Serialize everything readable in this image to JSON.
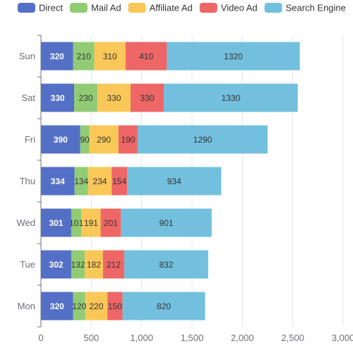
{
  "chart_data": {
    "type": "bar",
    "orientation": "horizontal",
    "stacked": true,
    "categories": [
      "Mon",
      "Tue",
      "Wed",
      "Thu",
      "Fri",
      "Sat",
      "Sun"
    ],
    "series": [
      {
        "name": "Direct",
        "color": "#5470c6",
        "label_color": "#ffffff",
        "values": [
          320,
          302,
          301,
          334,
          390,
          330,
          320
        ]
      },
      {
        "name": "Mail Ad",
        "color": "#91cc75",
        "label_color": "#333333",
        "values": [
          120,
          132,
          101,
          134,
          90,
          230,
          210
        ]
      },
      {
        "name": "Affiliate Ad",
        "color": "#fac858",
        "label_color": "#333333",
        "values": [
          220,
          182,
          191,
          234,
          290,
          330,
          310
        ]
      },
      {
        "name": "Video Ad",
        "color": "#ee6666",
        "label_color": "#333333",
        "values": [
          150,
          212,
          201,
          154,
          190,
          330,
          410
        ]
      },
      {
        "name": "Search Engine",
        "color": "#73c0de",
        "label_color": "#333333",
        "values": [
          820,
          832,
          901,
          934,
          1290,
          1330,
          1320
        ]
      }
    ],
    "xlim": [
      0,
      3000
    ],
    "x_ticks": [
      0,
      500,
      1000,
      1500,
      2000,
      2500,
      3000
    ],
    "x_tick_labels": [
      "0",
      "500",
      "1,000",
      "1,500",
      "2,000",
      "2,500",
      "3,000"
    ],
    "grid": true,
    "legend_position": "top",
    "data_labels": true
  }
}
